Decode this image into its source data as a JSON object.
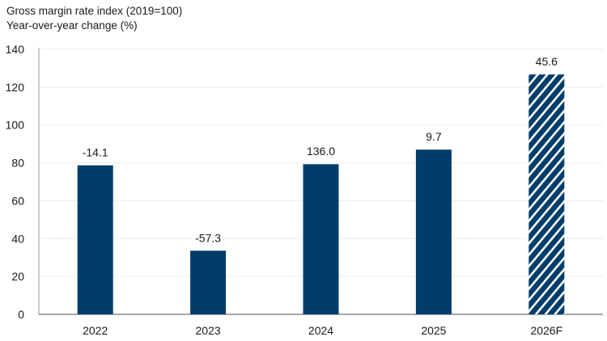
{
  "chart_data": {
    "type": "bar",
    "title": "Gross margin rate index (2019=100)",
    "subtitle": "Year-over-year change (%)",
    "categories": [
      "2022",
      "2023",
      "2024",
      "2025",
      "2026F"
    ],
    "values": [
      78.7,
      33.6,
      79.3,
      87.0,
      126.7
    ],
    "data_labels": [
      "-14.1",
      "-57.3",
      "136.0",
      "9.7",
      "45.6"
    ],
    "forecast": [
      false,
      false,
      false,
      false,
      true
    ],
    "ylim": [
      0,
      140
    ],
    "yticks": [
      "0",
      "20",
      "40",
      "60",
      "80",
      "100",
      "120",
      "140"
    ],
    "grid": true,
    "bar_color": "#003d6b",
    "forecast_pattern": "diagonal-hatch"
  }
}
